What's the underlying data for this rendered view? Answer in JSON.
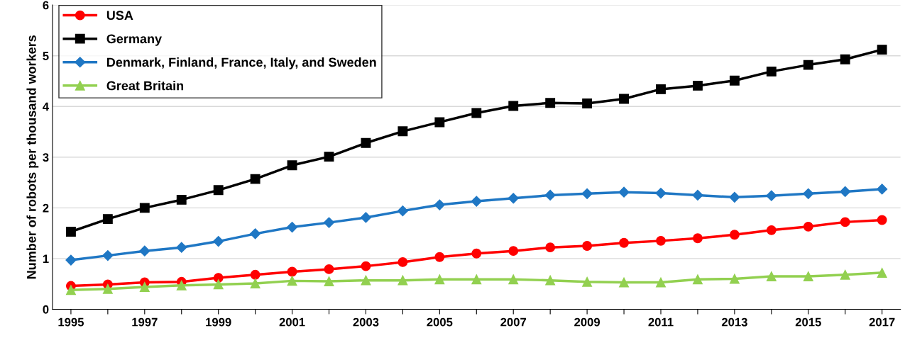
{
  "chart_data": {
    "type": "line",
    "ylabel": "Number of robots per thousand workers",
    "categories": [
      "1995",
      null,
      "1997",
      null,
      "1999",
      null,
      "2001",
      null,
      "2003",
      null,
      "2005",
      null,
      "2007",
      null,
      "2009",
      null,
      "2011",
      null,
      "2013",
      null,
      "2015",
      null,
      "2017"
    ],
    "ylim": [
      0,
      6
    ],
    "yticks": [
      0,
      1,
      2,
      3,
      4,
      5,
      6
    ],
    "grid": "y",
    "legend": "top left",
    "series": [
      {
        "name": "USA",
        "color": "#ff0000",
        "marker": "circle",
        "values": [
          0.46,
          0.49,
          0.53,
          0.54,
          0.62,
          0.68,
          0.74,
          0.79,
          0.85,
          0.93,
          1.03,
          1.1,
          1.15,
          1.22,
          1.25,
          1.31,
          1.35,
          1.4,
          1.47,
          1.56,
          1.63,
          1.72,
          1.76
        ]
      },
      {
        "name": "Germany",
        "color": "#000000",
        "marker": "square",
        "values": [
          1.53,
          1.78,
          2.0,
          2.16,
          2.35,
          2.57,
          2.84,
          3.01,
          3.28,
          3.51,
          3.69,
          3.87,
          4.01,
          4.07,
          4.06,
          4.15,
          4.34,
          4.41,
          4.51,
          4.69,
          4.82,
          4.93,
          5.12
        ]
      },
      {
        "name": "Denmark, Finland, France, Italy, and Sweden",
        "color": "#1f77c4",
        "marker": "diamond",
        "values": [
          0.97,
          1.06,
          1.15,
          1.22,
          1.34,
          1.49,
          1.62,
          1.71,
          1.81,
          1.94,
          2.06,
          2.13,
          2.19,
          2.25,
          2.28,
          2.31,
          2.29,
          2.25,
          2.21,
          2.24,
          2.28,
          2.32,
          2.37
        ]
      },
      {
        "name": "Great Britain",
        "color": "#92d050",
        "marker": "triangle",
        "values": [
          0.38,
          0.4,
          0.44,
          0.47,
          0.49,
          0.51,
          0.56,
          0.55,
          0.57,
          0.57,
          0.59,
          0.59,
          0.59,
          0.57,
          0.54,
          0.53,
          0.53,
          0.59,
          0.6,
          0.65,
          0.65,
          0.68,
          0.72
        ]
      }
    ]
  }
}
